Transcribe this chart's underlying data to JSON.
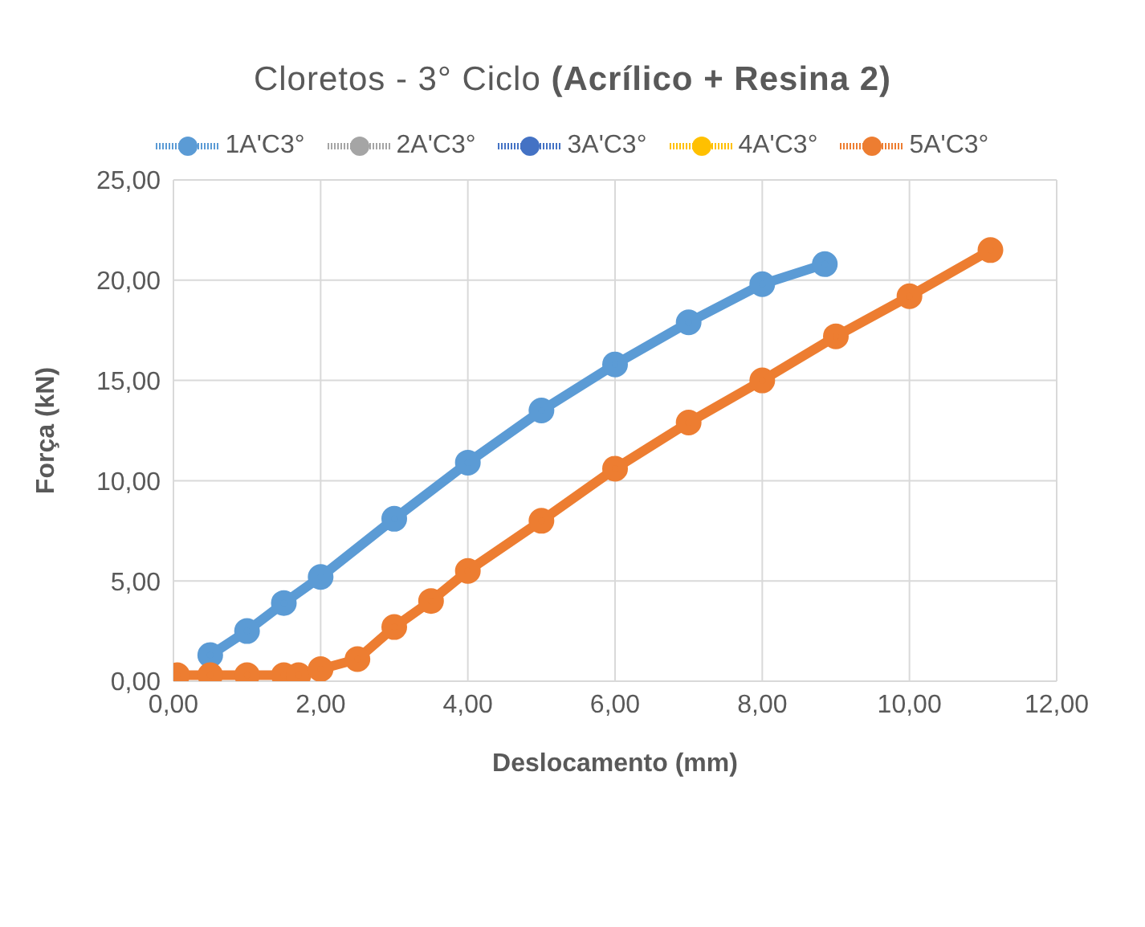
{
  "chart_data": {
    "type": "line",
    "title": "Cloretos - 3° Ciclo (Acrílico + Resina 2)",
    "xlabel": "Deslocamento (mm)",
    "ylabel": "Força (kN)",
    "xlim": [
      0,
      12
    ],
    "ylim": [
      0,
      25
    ],
    "xticks": [
      {
        "value": 0,
        "label": "0,00"
      },
      {
        "value": 2,
        "label": "2,00"
      },
      {
        "value": 4,
        "label": "4,00"
      },
      {
        "value": 6,
        "label": "6,00"
      },
      {
        "value": 8,
        "label": "8,00"
      },
      {
        "value": 10,
        "label": "10,00"
      },
      {
        "value": 12,
        "label": "12,00"
      }
    ],
    "yticks": [
      {
        "value": 0,
        "label": "0,00"
      },
      {
        "value": 5,
        "label": "5,00"
      },
      {
        "value": 10,
        "label": "10,00"
      },
      {
        "value": 15,
        "label": "15,00"
      },
      {
        "value": 20,
        "label": "20,00"
      },
      {
        "value": 25,
        "label": "25,00"
      }
    ],
    "grid": true,
    "legend": "top",
    "marker": "circle",
    "series": [
      {
        "name": "1A'C3°",
        "color": "#5b9bd5",
        "x": [
          0.5,
          1,
          1.5,
          2,
          3,
          4,
          5,
          6,
          7,
          8,
          8.85
        ],
        "values": [
          1.3,
          2.5,
          3.9,
          5.2,
          8.1,
          10.9,
          13.5,
          15.8,
          17.9,
          19.8,
          20.8
        ]
      },
      {
        "name": "2A'C3°",
        "color": "#a5a5a5"
      },
      {
        "name": "3A'C3°",
        "color": "#4472c4"
      },
      {
        "name": "4A'C3°",
        "color": "#ffc000"
      },
      {
        "name": "5A'C3°",
        "color": "#ed7d31",
        "x": [
          0.05,
          0.5,
          1,
          1.5,
          1.7,
          2,
          2.5,
          3,
          3.5,
          4,
          5,
          6,
          7,
          8,
          9,
          10,
          11.1
        ],
        "values": [
          0.3,
          0.3,
          0.3,
          0.3,
          0.3,
          0.6,
          1.1,
          2.7,
          4,
          5.5,
          8,
          10.6,
          12.9,
          15,
          17.2,
          19.2,
          21.5
        ]
      }
    ]
  }
}
